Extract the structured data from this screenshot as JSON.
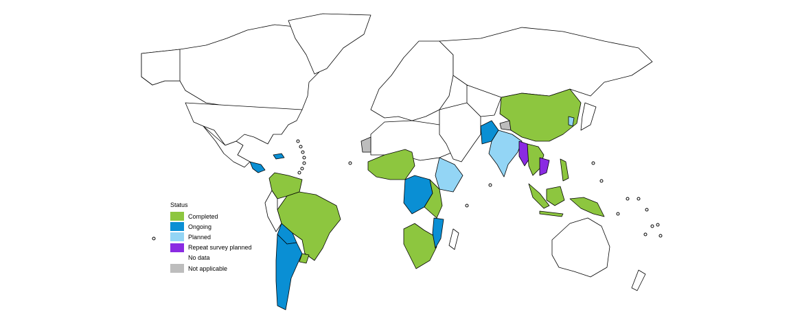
{
  "legend": {
    "title": "Status",
    "items": [
      {
        "label": "Completed",
        "color": "#8dc63f"
      },
      {
        "label": "Ongoing",
        "color": "#0a8fd4"
      },
      {
        "label": "Planned",
        "color": "#93d5f5"
      },
      {
        "label": "Repeat survey planned",
        "color": "#8a2be2"
      },
      {
        "label": "No data",
        "color": "#ffffff"
      },
      {
        "label": "Not applicable",
        "color": "#bdbdbd"
      }
    ]
  }
}
